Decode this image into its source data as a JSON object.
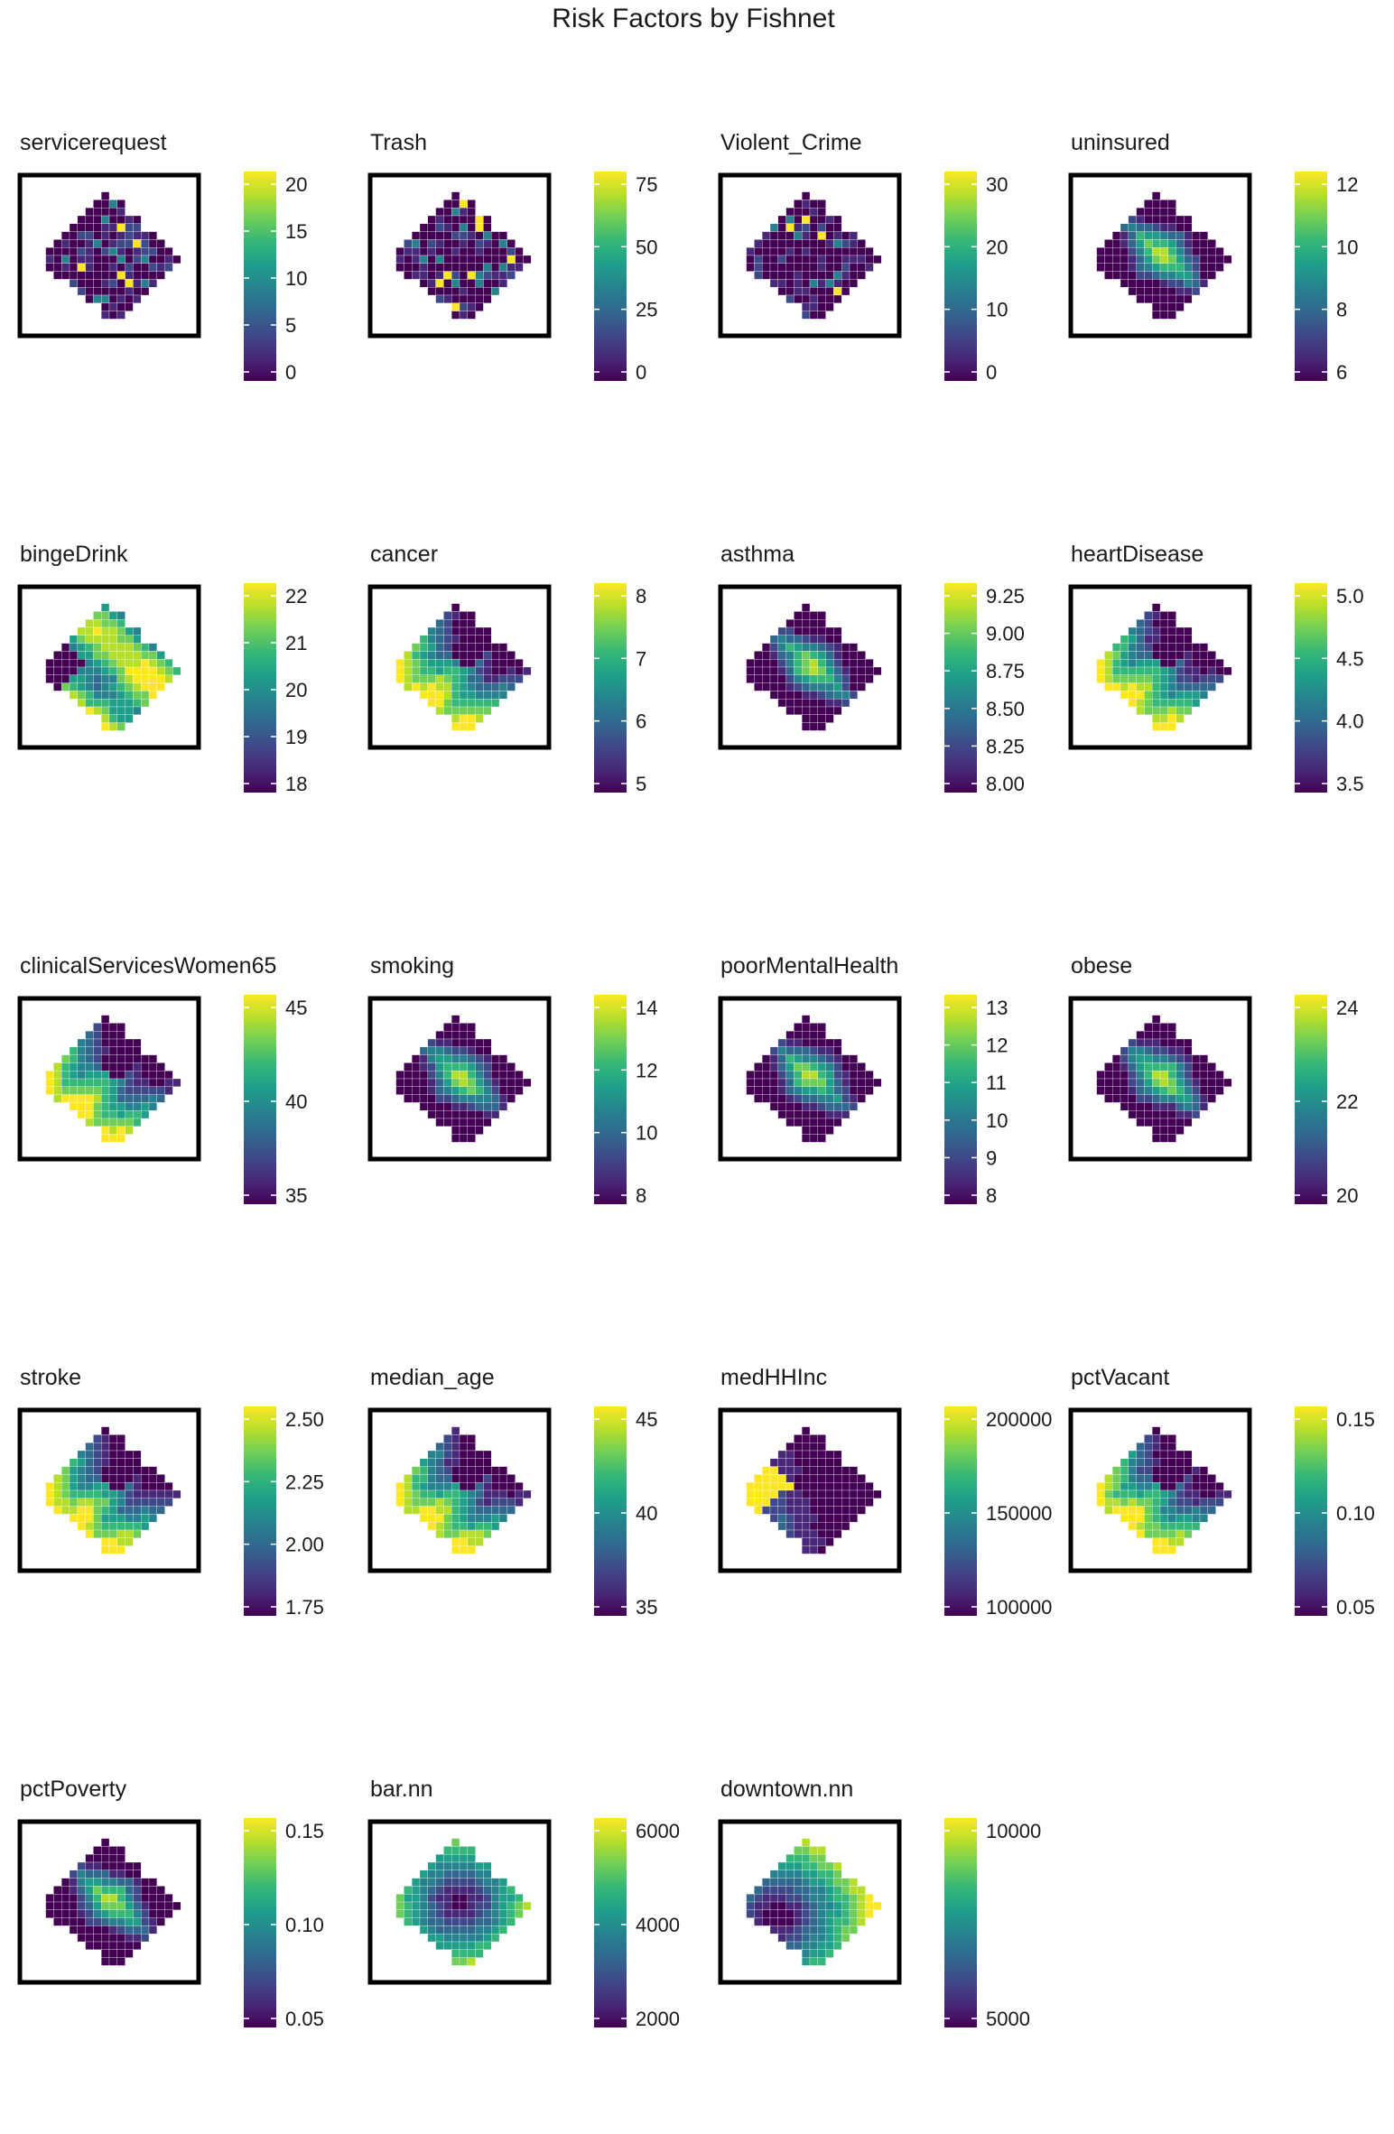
{
  "title": "Risk Factors by Fishnet",
  "palette": [
    "#440154",
    "#482878",
    "#3e4989",
    "#31688e",
    "#26828e",
    "#1f9e89",
    "#35b779",
    "#6ece58",
    "#b5de2b",
    "#fde725"
  ],
  "panels": [
    {
      "name": "servicerequest",
      "ticks": [
        "20",
        "15",
        "10",
        "5",
        "0"
      ],
      "style": "sparse"
    },
    {
      "name": "Trash",
      "ticks": [
        "75",
        "50",
        "25",
        "0"
      ],
      "style": "sparse"
    },
    {
      "name": "Violent_Crime",
      "ticks": [
        "30",
        "20",
        "10",
        "0"
      ],
      "style": "sparse"
    },
    {
      "name": "uninsured",
      "ticks": [
        "12",
        "10",
        "8",
        "6"
      ],
      "style": "bands"
    },
    {
      "name": "bingeDrink",
      "ticks": [
        "22",
        "21",
        "20",
        "19",
        "18"
      ],
      "style": "bands-high"
    },
    {
      "name": "cancer",
      "ticks": [
        "8",
        "7",
        "6",
        "5"
      ],
      "style": "bands-west"
    },
    {
      "name": "asthma",
      "ticks": [
        "9.25",
        "9.00",
        "8.75",
        "8.50",
        "8.25",
        "8.00"
      ],
      "style": "bands"
    },
    {
      "name": "heartDisease",
      "ticks": [
        "5.0",
        "4.5",
        "4.0",
        "3.5"
      ],
      "style": "bands-west"
    },
    {
      "name": "clinicalServicesWomen65",
      "ticks": [
        "45",
        "40",
        "35"
      ],
      "style": "bands-west"
    },
    {
      "name": "smoking",
      "ticks": [
        "14",
        "12",
        "10",
        "8"
      ],
      "style": "bands"
    },
    {
      "name": "poorMentalHealth",
      "ticks": [
        "13",
        "12",
        "11",
        "10",
        "9",
        "8"
      ],
      "style": "bands"
    },
    {
      "name": "obese",
      "ticks": [
        "24",
        "22",
        "20"
      ],
      "style": "bands"
    },
    {
      "name": "stroke",
      "ticks": [
        "2.50",
        "2.25",
        "2.00",
        "1.75"
      ],
      "style": "bands-west"
    },
    {
      "name": "median_age",
      "ticks": [
        "45",
        "40",
        "35"
      ],
      "style": "bands-west"
    },
    {
      "name": "medHHInc",
      "ticks": [
        "200000",
        "150000",
        "100000"
      ],
      "style": "bands-north"
    },
    {
      "name": "pctVacant",
      "ticks": [
        "0.15",
        "0.10",
        "0.05"
      ],
      "style": "bands-west"
    },
    {
      "name": "pctPoverty",
      "ticks": [
        "0.15",
        "0.10",
        "0.05"
      ],
      "style": "bands"
    },
    {
      "name": "bar.nn",
      "ticks": [
        "6000",
        "4000",
        "2000"
      ],
      "style": "distance-center"
    },
    {
      "name": "downtown.nn",
      "ticks": [
        "10000",
        "5000"
      ],
      "style": "distance-east"
    }
  ]
}
